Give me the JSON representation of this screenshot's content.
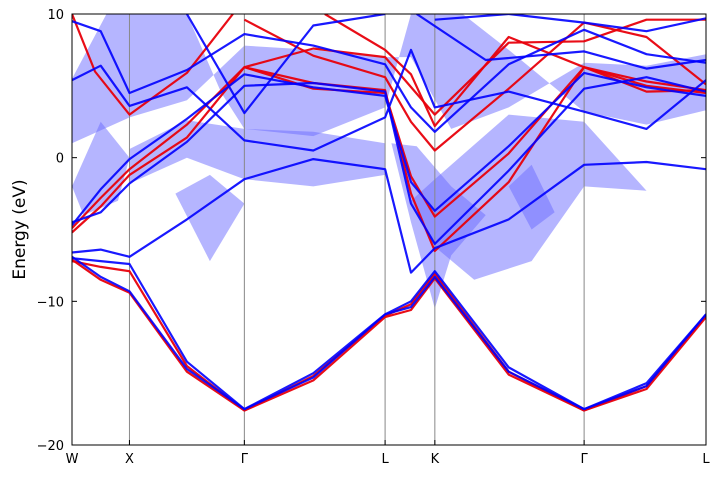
{
  "chart_data": {
    "type": "line",
    "title": "",
    "ylabel": "Energy (eV)",
    "xlabel": "",
    "ylim": [
      -20,
      10
    ],
    "yticks": [
      {
        "value": 10,
        "label": "10"
      },
      {
        "value": 0,
        "label": "0"
      },
      {
        "value": -10,
        "label": "−10"
      },
      {
        "value": -20,
        "label": "−20"
      }
    ],
    "kpoints": [
      {
        "label": "W",
        "x": 0.0
      },
      {
        "label": "X",
        "x": 0.5
      },
      {
        "label": "Γ",
        "x": 1.5
      },
      {
        "label": "L",
        "x": 2.7247
      },
      {
        "label": "K",
        "x": 3.1577
      },
      {
        "label": "Γ",
        "x": 4.4567
      },
      {
        "label": "L",
        "x": 5.5174
      }
    ],
    "colors": {
      "red_bands": "#e8000b",
      "blue_bands": "#0000ff",
      "blue_band_broadening": "#6c6cff",
      "kpoint_lines": "#888888"
    },
    "series": [
      {
        "style": "red",
        "bands": [
          [
            [
              0.0,
              -7.2
            ],
            [
              0.25,
              -7.6
            ],
            [
              0.5,
              -7.9
            ],
            [
              1.0,
              -14.5
            ],
            [
              1.5,
              -17.6
            ],
            [
              2.1,
              -15.2
            ],
            [
              2.7247,
              -11.0
            ],
            [
              2.95,
              -10.2
            ],
            [
              3.1577,
              -8.1
            ],
            [
              3.8,
              -14.9
            ],
            [
              4.4567,
              -17.6
            ],
            [
              5.0,
              -15.9
            ],
            [
              5.5174,
              -11.0
            ]
          ],
          [
            [
              0.0,
              -7.1
            ],
            [
              0.25,
              -8.5
            ],
            [
              0.5,
              -9.4
            ],
            [
              1.0,
              -14.9
            ],
            [
              1.5,
              -17.6
            ],
            [
              2.1,
              -15.5
            ],
            [
              2.7247,
              -11.1
            ],
            [
              2.95,
              -10.6
            ],
            [
              3.1577,
              -8.4
            ],
            [
              3.8,
              -15.1
            ],
            [
              4.4567,
              -17.6
            ],
            [
              5.0,
              -16.1
            ],
            [
              5.5174,
              -11.1
            ]
          ],
          [
            [
              0.0,
              -5.2
            ],
            [
              0.25,
              -3.4
            ],
            [
              0.5,
              -1.2
            ],
            [
              1.0,
              1.4
            ],
            [
              1.5,
              6.3
            ],
            [
              2.1,
              5.2
            ],
            [
              2.7247,
              4.7
            ],
            [
              2.95,
              -2.5
            ],
            [
              3.1577,
              -6.5
            ],
            [
              3.8,
              -1.7
            ],
            [
              4.4567,
              6.3
            ],
            [
              5.0,
              5.3
            ],
            [
              5.5174,
              4.7
            ]
          ],
          [
            [
              0.0,
              -4.9
            ],
            [
              0.25,
              -2.8
            ],
            [
              0.5,
              -0.8
            ],
            [
              1.0,
              2.3
            ],
            [
              1.5,
              6.3
            ],
            [
              2.1,
              4.8
            ],
            [
              2.7247,
              4.5
            ],
            [
              2.95,
              -1.3
            ],
            [
              3.1577,
              -4.1
            ],
            [
              3.8,
              0.3
            ],
            [
              4.4567,
              6.3
            ],
            [
              5.0,
              5.0
            ],
            [
              5.5174,
              4.5
            ]
          ],
          [
            [
              0.0,
              10.0
            ],
            [
              0.2,
              6.0
            ],
            [
              0.5,
              3.0
            ],
            [
              1.0,
              5.9
            ],
            [
              1.4,
              10.0
            ]
          ],
          [
            [
              1.5,
              9.6
            ],
            [
              2.1,
              7.1
            ],
            [
              2.7247,
              5.6
            ],
            [
              2.95,
              2.5
            ],
            [
              3.1577,
              0.5
            ],
            [
              3.8,
              4.8
            ],
            [
              4.4567,
              9.4
            ],
            [
              5.0,
              8.4
            ],
            [
              5.5174,
              5.1
            ]
          ],
          [
            [
              2.2,
              10.0
            ],
            [
              2.7247,
              7.5
            ],
            [
              2.95,
              5.8
            ],
            [
              3.1577,
              2.2
            ],
            [
              3.8,
              8.4
            ],
            [
              4.4567,
              6.3
            ],
            [
              5.0,
              4.6
            ],
            [
              5.5174,
              4.7
            ]
          ],
          [
            [
              1.5,
              6.3
            ],
            [
              2.1,
              7.6
            ],
            [
              2.7247,
              7.0
            ],
            [
              3.1577,
              3.0
            ],
            [
              3.8,
              8.0
            ],
            [
              4.4567,
              8.1
            ],
            [
              5.0,
              9.6
            ],
            [
              5.5174,
              9.6
            ]
          ]
        ]
      },
      {
        "style": "blue",
        "bands": [
          [
            [
              0.0,
              -7.0
            ],
            [
              0.25,
              -7.2
            ],
            [
              0.5,
              -7.4
            ],
            [
              1.0,
              -14.2
            ],
            [
              1.5,
              -17.5
            ],
            [
              2.1,
              -15.0
            ],
            [
              2.7247,
              -10.9
            ],
            [
              2.95,
              -10.0
            ],
            [
              3.1577,
              -7.9
            ],
            [
              3.8,
              -14.6
            ],
            [
              4.4567,
              -17.5
            ],
            [
              5.0,
              -15.7
            ],
            [
              5.5174,
              -10.9
            ]
          ],
          [
            [
              0.0,
              -6.9
            ],
            [
              0.25,
              -8.3
            ],
            [
              0.5,
              -9.3
            ],
            [
              1.0,
              -14.7
            ],
            [
              1.5,
              -17.5
            ],
            [
              2.1,
              -15.3
            ],
            [
              2.7247,
              -10.9
            ],
            [
              2.95,
              -10.4
            ],
            [
              3.1577,
              -8.3
            ],
            [
              3.8,
              -14.9
            ],
            [
              4.4567,
              -17.5
            ],
            [
              5.0,
              -15.9
            ],
            [
              5.5174,
              -10.9
            ]
          ],
          [
            [
              0.0,
              -6.6
            ],
            [
              0.25,
              -6.4
            ],
            [
              0.5,
              -6.9
            ],
            [
              1.0,
              -4.3
            ],
            [
              1.5,
              -1.5
            ],
            [
              2.1,
              -0.1
            ],
            [
              2.7247,
              -0.8
            ],
            [
              2.95,
              -8.0
            ],
            [
              3.1577,
              -6.3
            ],
            [
              3.8,
              -4.3
            ],
            [
              4.4567,
              -0.5
            ],
            [
              5.0,
              -0.3
            ],
            [
              5.5174,
              -0.8
            ]
          ],
          [
            [
              0.0,
              -4.5
            ],
            [
              0.25,
              -3.8
            ],
            [
              0.5,
              -1.8
            ],
            [
              1.0,
              1.1
            ],
            [
              1.5,
              5.0
            ],
            [
              2.1,
              5.2
            ],
            [
              2.7247,
              4.6
            ],
            [
              2.95,
              -3.2
            ],
            [
              3.1577,
              -6.0
            ],
            [
              3.8,
              -0.9
            ],
            [
              4.4567,
              4.8
            ],
            [
              5.0,
              5.6
            ],
            [
              5.5174,
              4.6
            ]
          ],
          [
            [
              0.0,
              -4.7
            ],
            [
              0.25,
              -2.2
            ],
            [
              0.5,
              -0.1
            ],
            [
              1.0,
              2.7
            ],
            [
              1.5,
              5.8
            ],
            [
              2.1,
              4.9
            ],
            [
              2.7247,
              4.3
            ],
            [
              2.95,
              -1.7
            ],
            [
              3.1577,
              -3.7
            ],
            [
              3.8,
              0.8
            ],
            [
              4.4567,
              5.9
            ],
            [
              5.0,
              4.9
            ],
            [
              5.5174,
              4.3
            ]
          ],
          [
            [
              0.0,
              5.4
            ],
            [
              0.25,
              6.4
            ],
            [
              0.5,
              3.6
            ],
            [
              1.0,
              4.9
            ],
            [
              1.5,
              1.2
            ],
            [
              2.1,
              0.5
            ],
            [
              2.7247,
              2.8
            ],
            [
              2.95,
              7.5
            ],
            [
              3.1577,
              3.5
            ],
            [
              3.8,
              4.6
            ],
            [
              4.4567,
              3.2
            ],
            [
              5.0,
              2.0
            ],
            [
              5.5174,
              5.4
            ]
          ],
          [
            [
              0.0,
              9.5
            ],
            [
              0.25,
              8.8
            ],
            [
              0.5,
              4.5
            ],
            [
              1.0,
              6.1
            ],
            [
              1.5,
              8.6
            ],
            [
              2.1,
              7.8
            ],
            [
              2.7247,
              6.5
            ],
            [
              2.95,
              3.5
            ],
            [
              3.1577,
              1.8
            ],
            [
              3.8,
              6.5
            ],
            [
              4.4567,
              8.9
            ],
            [
              5.0,
              7.2
            ],
            [
              5.5174,
              6.6
            ]
          ],
          [
            [
              1.0,
              10.0
            ],
            [
              1.5,
              3.1
            ],
            [
              2.1,
              9.2
            ],
            [
              2.7247,
              10.0
            ]
          ],
          [
            [
              3.1577,
              9.6
            ],
            [
              3.8,
              10.0
            ],
            [
              4.4567,
              9.4
            ],
            [
              5.0,
              8.8
            ],
            [
              5.5174,
              9.7
            ]
          ],
          [
            [
              3.0,
              10.0
            ],
            [
              3.6,
              6.8
            ],
            [
              4.4567,
              7.4
            ],
            [
              5.0,
              6.2
            ],
            [
              5.5174,
              6.8
            ]
          ]
        ]
      }
    ],
    "broadening_bands": [
      [
        [
          0.0,
          5.5
        ],
        [
          0.3,
          10.0
        ],
        [
          1.0,
          10.0
        ],
        [
          1.3,
          4.5
        ],
        [
          1.5,
          2.0
        ],
        [
          2.1,
          1.5
        ],
        [
          2.7247,
          3.5
        ],
        [
          2.95,
          10.0
        ],
        [
          3.4,
          10.0
        ],
        [
          3.8,
          7.5
        ],
        [
          4.4567,
          3.2
        ],
        [
          5.0,
          2.3
        ],
        [
          5.5174,
          3.3
        ],
        [
          5.5174,
          7.2
        ],
        [
          5.0,
          6.4
        ],
        [
          4.4567,
          6.6
        ],
        [
          3.8,
          3.5
        ],
        [
          3.3,
          2.0
        ],
        [
          2.95,
          7.0
        ],
        [
          2.7247,
          7.0
        ],
        [
          2.1,
          7.5
        ],
        [
          1.5,
          7.8
        ],
        [
          1.0,
          4.0
        ],
        [
          0.5,
          2.8
        ],
        [
          0.0,
          1.0
        ]
      ],
      [
        [
          0.5,
          -1.8
        ],
        [
          1.0,
          0.0
        ],
        [
          1.5,
          -1.5
        ],
        [
          2.1,
          -2.0
        ],
        [
          2.7247,
          -1.2
        ],
        [
          2.7247,
          1.0
        ],
        [
          2.1,
          1.8
        ],
        [
          1.5,
          2.0
        ],
        [
          1.0,
          2.6
        ],
        [
          0.5,
          0.6
        ]
      ],
      [
        [
          0.9,
          -2.5
        ],
        [
          1.2,
          -7.2
        ],
        [
          1.5,
          -3.2
        ],
        [
          1.2,
          -1.2
        ]
      ],
      [
        [
          2.95,
          -3.0
        ],
        [
          3.1577,
          -6.2
        ],
        [
          3.5,
          -8.5
        ],
        [
          4.0,
          -7.2
        ],
        [
          4.4567,
          -2.0
        ],
        [
          5.0,
          -2.3
        ],
        [
          4.4567,
          2.5
        ],
        [
          3.8,
          3.0
        ],
        [
          3.1577,
          -1.5
        ]
      ],
      [
        [
          2.78,
          1.0
        ],
        [
          2.95,
          -4.5
        ],
        [
          3.1577,
          -10.5
        ],
        [
          3.3,
          -6.8
        ],
        [
          3.6,
          -4.0
        ],
        [
          3.3,
          -2.0
        ],
        [
          3.0,
          0.8
        ]
      ],
      [
        [
          0.0,
          -2.0
        ],
        [
          0.25,
          2.5
        ],
        [
          0.5,
          0.0
        ],
        [
          0.4,
          -3.0
        ],
        [
          0.1,
          -4.0
        ]
      ],
      [
        [
          3.8,
          -2.0
        ],
        [
          4.0,
          -5.0
        ],
        [
          4.2,
          -3.8
        ],
        [
          4.0,
          -0.5
        ]
      ]
    ]
  }
}
